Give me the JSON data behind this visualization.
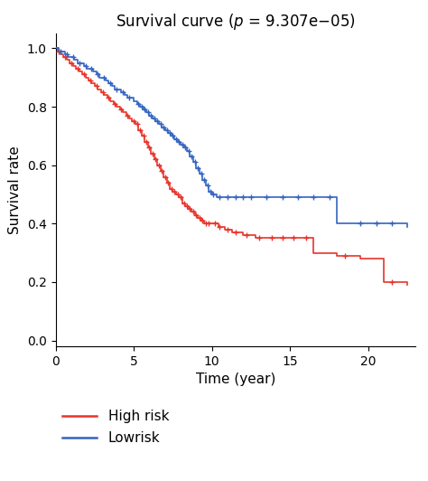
{
  "title": "Survival curve ($p$ = 9.307e−05)",
  "xlabel": "Time (year)",
  "ylabel": "Survival rate",
  "xlim": [
    0,
    23
  ],
  "ylim": [
    -0.02,
    1.05
  ],
  "xticks": [
    0,
    5,
    10,
    15,
    20
  ],
  "yticks": [
    0.0,
    0.2,
    0.4,
    0.6,
    0.8,
    1.0
  ],
  "high_risk_color": "#e8342a",
  "low_risk_color": "#3465c0",
  "high_risk_times": [
    0,
    0.15,
    0.3,
    0.5,
    0.7,
    0.9,
    1.1,
    1.3,
    1.5,
    1.7,
    1.9,
    2.1,
    2.3,
    2.5,
    2.7,
    2.9,
    3.1,
    3.3,
    3.5,
    3.7,
    3.9,
    4.1,
    4.3,
    4.5,
    4.7,
    4.9,
    5.1,
    5.3,
    5.5,
    5.7,
    5.9,
    6.1,
    6.3,
    6.5,
    6.7,
    6.9,
    7.1,
    7.3,
    7.5,
    7.7,
    7.9,
    8.1,
    8.3,
    8.5,
    8.7,
    8.9,
    9.1,
    9.3,
    9.5,
    9.7,
    9.9,
    10.1,
    10.4,
    10.8,
    11.3,
    12.0,
    12.8,
    13.5,
    14.2,
    15.0,
    15.8,
    16.5,
    18.0,
    19.5,
    21.0,
    21.5,
    22.0,
    22.5
  ],
  "high_risk_surv": [
    1.0,
    0.99,
    0.98,
    0.97,
    0.96,
    0.95,
    0.94,
    0.93,
    0.92,
    0.91,
    0.9,
    0.89,
    0.88,
    0.87,
    0.86,
    0.85,
    0.84,
    0.83,
    0.82,
    0.81,
    0.8,
    0.79,
    0.78,
    0.77,
    0.76,
    0.75,
    0.74,
    0.72,
    0.7,
    0.68,
    0.66,
    0.64,
    0.62,
    0.6,
    0.58,
    0.56,
    0.54,
    0.52,
    0.51,
    0.5,
    0.49,
    0.47,
    0.46,
    0.45,
    0.44,
    0.43,
    0.42,
    0.41,
    0.4,
    0.4,
    0.4,
    0.4,
    0.39,
    0.38,
    0.37,
    0.36,
    0.35,
    0.35,
    0.35,
    0.35,
    0.35,
    0.3,
    0.29,
    0.28,
    0.2,
    0.2,
    0.2,
    0.19
  ],
  "high_risk_censors": [
    0.2,
    0.6,
    1.0,
    1.4,
    1.8,
    2.2,
    2.6,
    3.0,
    3.4,
    3.8,
    4.2,
    4.6,
    5.0,
    5.2,
    5.4,
    5.6,
    5.8,
    6.0,
    6.2,
    6.4,
    6.6,
    6.8,
    7.0,
    7.2,
    7.4,
    7.6,
    7.8,
    8.0,
    8.2,
    8.4,
    8.6,
    8.8,
    9.0,
    9.2,
    9.4,
    9.6,
    9.8,
    10.2,
    10.5,
    11.0,
    11.5,
    12.2,
    13.0,
    13.8,
    14.5,
    15.2,
    16.0,
    18.5,
    21.5
  ],
  "low_risk_times": [
    0,
    0.2,
    0.4,
    0.6,
    0.8,
    1.0,
    1.2,
    1.4,
    1.6,
    1.8,
    2.0,
    2.2,
    2.4,
    2.6,
    2.8,
    3.0,
    3.2,
    3.4,
    3.6,
    3.8,
    4.0,
    4.2,
    4.4,
    4.6,
    4.8,
    5.0,
    5.2,
    5.4,
    5.6,
    5.8,
    6.0,
    6.2,
    6.4,
    6.6,
    6.8,
    7.0,
    7.2,
    7.4,
    7.6,
    7.8,
    8.0,
    8.2,
    8.4,
    8.6,
    8.8,
    9.0,
    9.2,
    9.4,
    9.6,
    9.8,
    10.0,
    10.3,
    10.7,
    11.2,
    11.8,
    13.0,
    14.0,
    15.0,
    18.0,
    18.5,
    20.0,
    22.0,
    22.5
  ],
  "low_risk_surv": [
    1.0,
    0.99,
    0.99,
    0.98,
    0.97,
    0.97,
    0.96,
    0.95,
    0.95,
    0.94,
    0.93,
    0.93,
    0.92,
    0.91,
    0.9,
    0.9,
    0.89,
    0.88,
    0.87,
    0.86,
    0.86,
    0.85,
    0.84,
    0.83,
    0.83,
    0.82,
    0.81,
    0.8,
    0.79,
    0.78,
    0.77,
    0.76,
    0.75,
    0.74,
    0.73,
    0.72,
    0.71,
    0.7,
    0.69,
    0.68,
    0.67,
    0.66,
    0.65,
    0.63,
    0.61,
    0.59,
    0.57,
    0.55,
    0.53,
    0.51,
    0.5,
    0.49,
    0.49,
    0.49,
    0.49,
    0.49,
    0.49,
    0.49,
    0.4,
    0.4,
    0.4,
    0.4,
    0.39
  ],
  "low_risk_censors": [
    0.3,
    0.7,
    1.1,
    1.5,
    1.9,
    2.3,
    2.7,
    3.1,
    3.5,
    3.9,
    4.3,
    4.7,
    5.3,
    5.5,
    5.7,
    5.9,
    6.1,
    6.3,
    6.5,
    6.7,
    6.9,
    7.1,
    7.3,
    7.5,
    7.7,
    7.9,
    8.1,
    8.3,
    8.5,
    8.7,
    8.9,
    9.1,
    9.3,
    9.5,
    9.7,
    9.9,
    10.1,
    10.5,
    11.0,
    11.5,
    12.0,
    12.5,
    13.5,
    14.5,
    15.5,
    16.5,
    17.5,
    19.5,
    20.5,
    21.5
  ],
  "legend_labels": [
    "High risk",
    "Lowrisk"
  ],
  "title_fontsize": 12,
  "label_fontsize": 11,
  "tick_fontsize": 10
}
